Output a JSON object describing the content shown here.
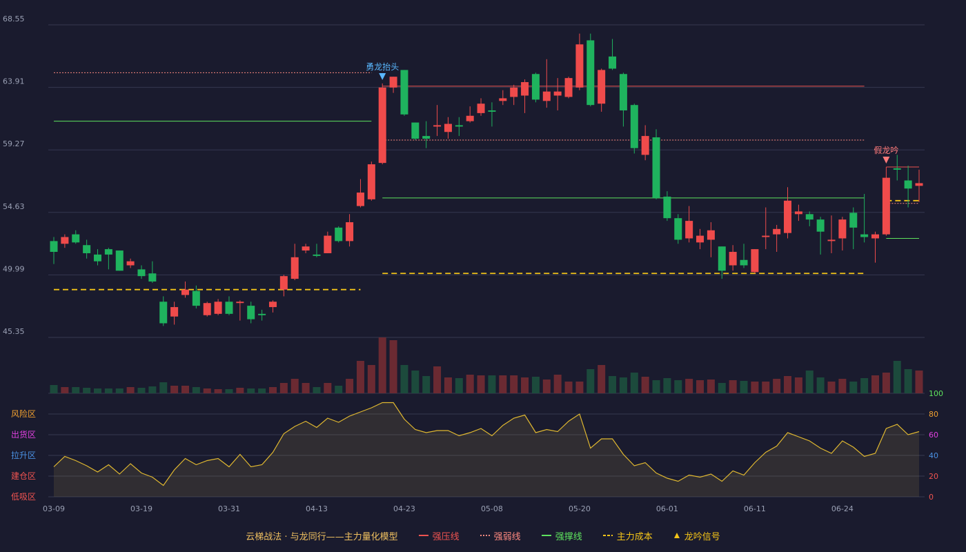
{
  "chart_data": {
    "type": "candlestick",
    "categories": [
      "03-09",
      null,
      null,
      null,
      null,
      null,
      null,
      null,
      "03-19",
      null,
      null,
      null,
      null,
      null,
      null,
      null,
      "03-31",
      null,
      null,
      null,
      null,
      null,
      null,
      null,
      "04-13",
      null,
      null,
      null,
      null,
      null,
      null,
      null,
      "04-23",
      null,
      null,
      null,
      null,
      null,
      null,
      null,
      "05-08",
      null,
      null,
      null,
      null,
      null,
      null,
      null,
      "05-20",
      null,
      null,
      null,
      null,
      null,
      null,
      null,
      "06-01",
      null,
      null,
      null,
      null,
      null,
      null,
      null,
      "06-11",
      null,
      null,
      null,
      null,
      null,
      null,
      null,
      "06-24",
      null,
      null,
      null,
      null,
      null,
      null,
      null
    ],
    "open": [
      52.5,
      52.3,
      53.0,
      52.2,
      51.5,
      51.9,
      51.8,
      50.7,
      50.4,
      50.1,
      48.0,
      46.9,
      48.5,
      48.8,
      47.0,
      47.1,
      48.0,
      47.9,
      47.7,
      47.1,
      47.6,
      48.9,
      49.7,
      51.8,
      51.5,
      51.6,
      53.5,
      52.5,
      55.1,
      55.6,
      58.3,
      63.9,
      65.2,
      61.3,
      60.3,
      61.0,
      60.6,
      61.1,
      61.4,
      62.0,
      62.2,
      62.9,
      63.2,
      63.3,
      64.9,
      62.9,
      63.3,
      63.2,
      63.9,
      67.4,
      62.7,
      66.2,
      64.9,
      62.6,
      58.9,
      60.2,
      55.8,
      54.2,
      52.7,
      52.4,
      52.6,
      52.1,
      50.7,
      51.1,
      50.2,
      52.8,
      53.0,
      53.1,
      54.5,
      54.5,
      54.1,
      52.5,
      52.7,
      54.6,
      53.0,
      52.7,
      53.0,
      57.9,
      57.0,
      56.6
    ],
    "high": [
      52.8,
      53.0,
      53.3,
      52.6,
      51.9,
      52.0,
      51.8,
      51.2,
      50.7,
      51.0,
      48.4,
      48.0,
      49.5,
      49.2,
      48.0,
      48.2,
      48.4,
      48.1,
      48.0,
      47.4,
      48.1,
      50.0,
      52.3,
      52.3,
      52.3,
      53.2,
      53.6,
      54.5,
      57.1,
      58.4,
      64.2,
      64.7,
      65.2,
      61.3,
      61.4,
      62.6,
      61.7,
      61.7,
      62.5,
      63.1,
      62.8,
      63.7,
      64.1,
      64.5,
      65.0,
      66.0,
      64.6,
      64.7,
      67.9,
      67.9,
      65.3,
      67.5,
      65.0,
      62.7,
      61.1,
      60.8,
      56.2,
      54.5,
      55.1,
      53.4,
      53.9,
      52.1,
      52.2,
      52.3,
      51.9,
      55.0,
      53.7,
      56.5,
      55.2,
      54.7,
      54.3,
      54.4,
      54.3,
      55.0,
      56.0,
      53.2,
      58.0,
      58.9,
      58.1,
      57.8
    ],
    "low": [
      50.8,
      52.0,
      52.3,
      51.2,
      50.7,
      50.4,
      50.3,
      50.5,
      49.7,
      49.4,
      46.2,
      46.3,
      48.3,
      47.5,
      46.9,
      47.0,
      47.0,
      46.6,
      46.4,
      46.6,
      47.2,
      48.4,
      49.6,
      51.6,
      51.3,
      51.6,
      52.4,
      52.1,
      55.0,
      55.5,
      58.2,
      63.5,
      61.8,
      60.0,
      59.4,
      60.3,
      60.1,
      60.3,
      61.3,
      61.8,
      61.0,
      62.6,
      62.6,
      62.0,
      62.8,
      62.4,
      62.2,
      63.1,
      63.7,
      62.5,
      62.1,
      65.2,
      61.0,
      59.0,
      58.5,
      55.6,
      54.0,
      52.3,
      52.4,
      51.9,
      51.3,
      49.7,
      50.3,
      50.5,
      50.1,
      51.9,
      51.7,
      52.7,
      54.0,
      53.6,
      51.5,
      51.6,
      51.8,
      51.9,
      52.4,
      50.9,
      52.9,
      57.0,
      55.0,
      55.4
    ],
    "close": [
      51.7,
      52.8,
      52.4,
      51.6,
      51.0,
      51.5,
      50.3,
      51.0,
      49.9,
      49.5,
      46.4,
      47.6,
      48.9,
      47.7,
      47.9,
      48.0,
      47.1,
      48.0,
      46.7,
      47.0,
      48.0,
      49.9,
      51.3,
      52.1,
      51.4,
      52.9,
      52.5,
      53.9,
      56.1,
      58.2,
      63.9,
      64.7,
      61.9,
      60.1,
      60.1,
      61.1,
      61.2,
      61.0,
      61.8,
      62.7,
      62.1,
      63.1,
      63.9,
      64.3,
      63.0,
      63.6,
      63.6,
      64.6,
      67.1,
      62.6,
      65.2,
      65.3,
      62.2,
      59.4,
      60.3,
      55.7,
      54.2,
      52.6,
      54.0,
      52.9,
      53.3,
      50.3,
      51.7,
      50.7,
      51.9,
      52.9,
      53.4,
      55.5,
      54.7,
      54.1,
      53.2,
      52.6,
      54.1,
      53.5,
      52.8,
      53.0,
      57.2,
      57.8,
      56.4,
      56.8
    ],
    "volume": [
      12,
      9,
      9,
      8,
      7,
      7,
      7,
      9,
      8,
      10,
      16,
      11,
      11,
      9,
      7,
      6,
      6,
      8,
      7,
      7,
      9,
      15,
      21,
      15,
      9,
      15,
      11,
      21,
      47,
      41,
      81,
      77,
      41,
      33,
      25,
      39,
      23,
      22,
      27,
      26,
      26,
      26,
      26,
      23,
      24,
      20,
      27,
      17,
      17,
      35,
      41,
      25,
      23,
      30,
      24,
      19,
      22,
      19,
      21,
      19,
      20,
      15,
      19,
      18,
      17,
      17,
      21,
      25,
      23,
      33,
      23,
      17,
      21,
      17,
      22,
      26,
      30,
      47,
      35,
      33
    ],
    "up_color": "#ef4b4b",
    "down_color": "#1fb35e",
    "up_volume_color": "#6b2a32",
    "down_volume_color": "#1c4a3c",
    "ylim": [
      45.35,
      68.55
    ],
    "yticks": [
      45.35,
      49.99,
      54.63,
      59.27,
      63.91,
      68.55
    ],
    "grid": true,
    "series": [
      {
        "name": "强压线",
        "color": "#ef5350",
        "style": "solid",
        "values": [
          null,
          null,
          null,
          null,
          null,
          null,
          null,
          null,
          null,
          null,
          null,
          null,
          null,
          null,
          null,
          null,
          null,
          null,
          null,
          null,
          null,
          null,
          null,
          null,
          null,
          null,
          null,
          null,
          null,
          null,
          64,
          64,
          64,
          64,
          64,
          64,
          64,
          64,
          64,
          64,
          64,
          64,
          64,
          64,
          64,
          64,
          64,
          64,
          64,
          64,
          64,
          64,
          64,
          64,
          64,
          64,
          64,
          64,
          64,
          64,
          64,
          64,
          64,
          64,
          64,
          64,
          64,
          64,
          64,
          64,
          64,
          64,
          64,
          64,
          64,
          null,
          58,
          58,
          58,
          58
        ]
      },
      {
        "name": "强弱线",
        "color": "#ff8a80",
        "style": "dotted",
        "values": [
          65,
          65,
          65,
          65,
          65,
          65,
          65,
          65,
          65,
          65,
          65,
          65,
          65,
          65,
          65,
          65,
          65,
          65,
          65,
          65,
          65,
          65,
          65,
          65,
          65,
          65,
          65,
          65,
          65,
          65,
          60,
          60,
          60,
          60,
          60,
          60,
          60,
          60,
          60,
          60,
          60,
          60,
          60,
          60,
          60,
          60,
          60,
          60,
          60,
          60,
          60,
          60,
          60,
          60,
          60,
          60,
          60,
          60,
          60,
          60,
          60,
          60,
          60,
          60,
          60,
          60,
          60,
          60,
          60,
          60,
          60,
          60,
          60,
          60,
          60,
          null,
          55.3,
          55.3,
          55.3,
          55.3
        ]
      },
      {
        "name": "强撑线",
        "color": "#5ee35e",
        "style": "solid",
        "values": [
          61.4,
          61.4,
          61.4,
          61.4,
          61.4,
          61.4,
          61.4,
          61.4,
          61.4,
          61.4,
          61.4,
          61.4,
          61.4,
          61.4,
          61.4,
          61.4,
          61.4,
          61.4,
          61.4,
          61.4,
          61.4,
          61.4,
          61.4,
          61.4,
          61.4,
          61.4,
          61.4,
          61.4,
          61.4,
          61.4,
          55.7,
          55.7,
          55.7,
          55.7,
          55.7,
          55.7,
          55.7,
          55.7,
          55.7,
          55.7,
          55.7,
          55.7,
          55.7,
          55.7,
          55.7,
          55.7,
          55.7,
          55.7,
          55.7,
          55.7,
          55.7,
          55.7,
          55.7,
          55.7,
          55.7,
          55.7,
          55.7,
          55.7,
          55.7,
          55.7,
          55.7,
          55.7,
          55.7,
          55.7,
          55.7,
          55.7,
          55.7,
          55.7,
          55.7,
          55.7,
          55.7,
          55.7,
          55.7,
          55.7,
          55.7,
          null,
          52.7,
          52.7,
          52.7,
          52.7
        ]
      },
      {
        "name": "主力成本",
        "color": "#f5c518",
        "style": "dashed",
        "values": [
          48.9,
          48.9,
          48.9,
          48.9,
          48.9,
          48.9,
          48.9,
          48.9,
          48.9,
          48.9,
          48.9,
          48.9,
          48.9,
          48.9,
          48.9,
          48.9,
          48.9,
          48.9,
          48.9,
          48.9,
          48.9,
          48.9,
          48.9,
          48.9,
          48.9,
          48.9,
          48.9,
          48.9,
          48.9,
          null,
          50.1,
          50.1,
          50.1,
          50.1,
          50.1,
          50.1,
          50.1,
          50.1,
          50.1,
          50.1,
          50.1,
          50.1,
          50.1,
          50.1,
          50.1,
          50.1,
          50.1,
          50.1,
          50.1,
          50.1,
          50.1,
          50.1,
          50.1,
          50.1,
          50.1,
          50.1,
          50.1,
          50.1,
          50.1,
          50.1,
          50.1,
          50.1,
          50.1,
          50.1,
          50.1,
          50.1,
          50.1,
          50.1,
          50.1,
          50.1,
          50.1,
          50.1,
          50.1,
          50.1,
          50.1,
          null,
          55.5,
          55.5,
          55.5,
          55.5
        ]
      }
    ],
    "signals": [
      null,
      null,
      null,
      null,
      null,
      null,
      null,
      null,
      null,
      null,
      null,
      null,
      null,
      null,
      null,
      null,
      null,
      null,
      null,
      null,
      null,
      null,
      null,
      null,
      null,
      null,
      null,
      null,
      null,
      null,
      {
        "text": "勇龙抬头",
        "color": "#5ab8ff"
      },
      null,
      null,
      null,
      null,
      null,
      null,
      null,
      null,
      null,
      null,
      null,
      null,
      null,
      null,
      null,
      null,
      null,
      null,
      null,
      null,
      null,
      null,
      null,
      null,
      null,
      null,
      null,
      null,
      null,
      null,
      null,
      null,
      null,
      null,
      null,
      null,
      null,
      null,
      null,
      null,
      null,
      null,
      null,
      null,
      null,
      {
        "text": "假龙吟",
        "color": "#ff7a7a"
      },
      null,
      null,
      null
    ],
    "signal_legend": {
      "name": "龙吟信号",
      "color": "#f5c518"
    },
    "indicator": {
      "values": [
        29,
        39,
        35,
        30,
        24,
        31,
        22,
        32,
        23,
        19,
        11,
        26,
        37,
        31,
        35,
        37,
        29,
        41,
        29,
        31,
        43,
        61,
        68,
        73,
        67,
        76,
        72,
        78,
        82,
        86,
        91,
        91,
        75,
        65,
        62,
        64,
        64,
        59,
        62,
        66,
        59,
        69,
        76,
        79,
        62,
        65,
        63,
        73,
        80,
        47,
        56,
        56,
        41,
        30,
        33,
        23,
        18,
        15,
        21,
        19,
        22,
        15,
        25,
        21,
        33,
        43,
        49,
        62,
        58,
        54,
        47,
        42,
        54,
        48,
        39,
        42,
        66,
        70,
        60,
        63
      ],
      "color": "#e0b830",
      "ylim": [
        0,
        100
      ],
      "yticks": [
        0,
        20,
        40,
        60,
        80,
        100
      ],
      "ytick_colors": [
        "#ef5350",
        "#ef5350",
        "#4a90e2",
        "#e040e0",
        "#f0a030",
        "#5ee35e"
      ],
      "zones": [
        {
          "value": 80,
          "label": "风险区",
          "color": "#f0a030"
        },
        {
          "value": 60,
          "label": "出货区",
          "color": "#e040e0"
        },
        {
          "value": 40,
          "label": "拉升区",
          "color": "#4a90e2"
        },
        {
          "value": 20,
          "label": "建仓区",
          "color": "#ef5350"
        },
        {
          "value": 0,
          "label": "低吸区",
          "color": "#ef5350"
        }
      ]
    },
    "legend_title": "云梯战法 · 与龙同行——主力量化模型",
    "legend_title_color": "#f0c060"
  }
}
